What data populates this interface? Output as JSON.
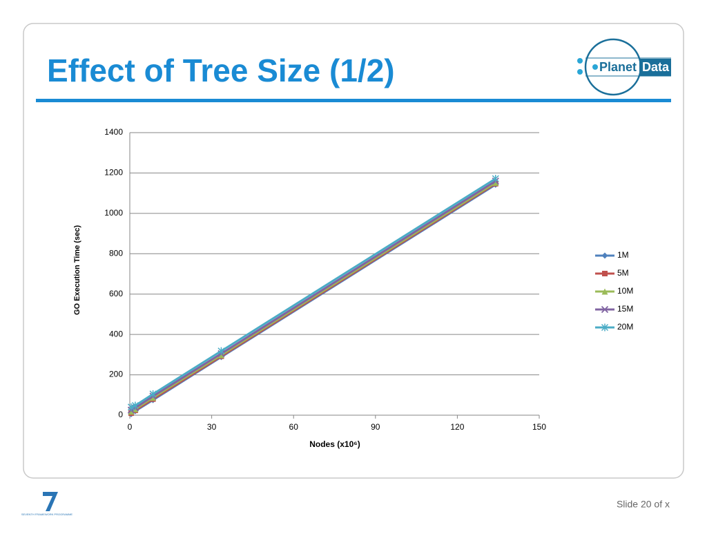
{
  "slide": {
    "title": "Effect of Tree Size (1/2)",
    "footer": "Slide 20 of x",
    "logo_left": "Planet",
    "logo_right": "Data",
    "programme": "SEVENTH FRAMEWORK PROGRAMME"
  },
  "chart_data": {
    "type": "line",
    "x_label": "Nodes (x10⁶)",
    "y_label": "GO Execution Time (sec)",
    "x": [
      0.5,
      2,
      8.5,
      33.5,
      134
    ],
    "series": [
      {
        "name": "1M",
        "color": "#4f81bd",
        "marker": "diamond",
        "values": [
          5,
          20,
          75,
          288,
          1142
        ]
      },
      {
        "name": "5M",
        "color": "#c0504d",
        "marker": "square",
        "values": [
          10,
          24,
          80,
          292,
          1147
        ]
      },
      {
        "name": "10M",
        "color": "#9bbb59",
        "marker": "triangle",
        "values": [
          18,
          30,
          87,
          298,
          1152
        ]
      },
      {
        "name": "15M",
        "color": "#8064a2",
        "marker": "x",
        "values": [
          25,
          36,
          94,
          305,
          1160
        ]
      },
      {
        "name": "20M",
        "color": "#4bacc6",
        "marker": "star",
        "values": [
          40,
          48,
          105,
          318,
          1172
        ]
      }
    ],
    "xlim": [
      0,
      150
    ],
    "xticks": [
      0,
      30,
      60,
      90,
      120,
      150
    ],
    "ylim": [
      0,
      1400
    ],
    "yticks": [
      0,
      200,
      400,
      600,
      800,
      1000,
      1200,
      1400
    ],
    "grid": true,
    "legend": "right"
  }
}
